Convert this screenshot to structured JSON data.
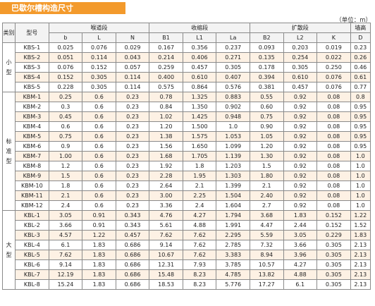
{
  "title": "巴歇尔槽构造尺寸",
  "unit": "（单位：m）",
  "headers": {
    "category": "类别",
    "model": "型号",
    "group_throat": "喉道段",
    "group_contraction": "收缩段",
    "group_expansion": "扩散段",
    "group_wall": "墙高",
    "cols": [
      "b",
      "L",
      "N",
      "B1",
      "L1",
      "La",
      "B2",
      "L2",
      "K",
      "D"
    ]
  },
  "groups": [
    {
      "category": "小型",
      "rows": [
        {
          "model": "KBS-1",
          "values": [
            "0.025",
            "0.076",
            "0.029",
            "0.167",
            "0.356",
            "0.237",
            "0.093",
            "0.203",
            "0.019",
            "0.23"
          ]
        },
        {
          "model": "KBS-2",
          "values": [
            "0.051",
            "0.114",
            "0.043",
            "0.214",
            "0.406",
            "0.271",
            "0.135",
            "0.254",
            "0.022",
            "0.26"
          ]
        },
        {
          "model": "KBS-3",
          "values": [
            "0.076",
            "0.152",
            "0.057",
            "0.259",
            "0.457",
            "0.305",
            "0.178",
            "0.305",
            "0.250",
            "0.46"
          ]
        },
        {
          "model": "KBS-4",
          "values": [
            "0.152",
            "0.305",
            "0.114",
            "0.400",
            "0.610",
            "0.407",
            "0.394",
            "0.610",
            "0.076",
            "0.61"
          ]
        },
        {
          "model": "KBS-5",
          "values": [
            "0.228",
            "0.305",
            "0.114",
            "0.575",
            "0.864",
            "0.576",
            "0.381",
            "0.457",
            "0.076",
            "0.77"
          ]
        }
      ]
    },
    {
      "category": "标准型",
      "rows": [
        {
          "model": "KBM-1",
          "values": [
            "0.25",
            "0.6",
            "0.23",
            "0.78",
            "1.325",
            "0.883",
            "0.55",
            "0.92",
            "0.08",
            "0.8"
          ]
        },
        {
          "model": "KBM-2",
          "values": [
            "0.3",
            "0.6",
            "0.23",
            "0.84",
            "1.350",
            "0.902",
            "0.60",
            "0.92",
            "0.08",
            "0.95"
          ]
        },
        {
          "model": "KBM-3",
          "values": [
            "0.45",
            "0.6",
            "0.23",
            "1.02",
            "1.425",
            "0.948",
            "0.75",
            "0.92",
            "0.08",
            "0.95"
          ]
        },
        {
          "model": "KBM-4",
          "values": [
            "0.6",
            "0.6",
            "0.23",
            "1.20",
            "1.500",
            "1.0",
            "0.90",
            "0.92",
            "0.08",
            "0.95"
          ]
        },
        {
          "model": "KBM-5",
          "values": [
            "0.75",
            "0.6",
            "0.23",
            "1.38",
            "1.575",
            "1.053",
            "1.05",
            "0.92",
            "0.08",
            "0.95"
          ]
        },
        {
          "model": "KBM-6",
          "values": [
            "0.9",
            "0.6",
            "0.23",
            "1.56",
            "1.650",
            "1.099",
            "1.20",
            "0.92",
            "0.08",
            "0.95"
          ]
        },
        {
          "model": "KBM-7",
          "values": [
            "1.00",
            "0.6",
            "0.23",
            "1.68",
            "1.705",
            "1.139",
            "1.30",
            "0.92",
            "0.08",
            "1.0"
          ]
        },
        {
          "model": "KBM-8",
          "values": [
            "1.2",
            "0.6",
            "0.23",
            "1.92",
            "1.8",
            "1.203",
            "1.5",
            "0.92",
            "0.08",
            "1.0"
          ]
        },
        {
          "model": "KBM-9",
          "values": [
            "1.5",
            "0.6",
            "0.23",
            "2.28",
            "1.95",
            "1.303",
            "1.80",
            "0.92",
            "0.08",
            "1.0"
          ]
        },
        {
          "model": "KBM-10",
          "values": [
            "1.8",
            "0.6",
            "0.23",
            "2.64",
            "2.1",
            "1.399",
            "2.1",
            "0.92",
            "0.08",
            "1.0"
          ]
        },
        {
          "model": "KBM-11",
          "values": [
            "2.1",
            "0.6",
            "0.23",
            "3.00",
            "2.25",
            "1.504",
            "2.40",
            "0.92",
            "0.08",
            "1.0"
          ]
        },
        {
          "model": "KBM-12",
          "values": [
            "2.4",
            "0.6",
            "0.23",
            "3.36",
            "2.4",
            "1.604",
            "2.7",
            "0.92",
            "0.08",
            "1.0"
          ]
        }
      ]
    },
    {
      "category": "大型",
      "rows": [
        {
          "model": "KBL-1",
          "values": [
            "3.05",
            "0.91",
            "0.343",
            "4.76",
            "4.27",
            "1.794",
            "3.68",
            "1.83",
            "0.152",
            "1.22"
          ]
        },
        {
          "model": "KBL-2",
          "values": [
            "3.66",
            "0.91",
            "0.343",
            "5.61",
            "4.88",
            "1.991",
            "4.47",
            "2.44",
            "0.152",
            "1.52"
          ]
        },
        {
          "model": "KBL-3",
          "values": [
            "4.57",
            "1.22",
            "0.457",
            "7.62",
            "7.62",
            "2.295",
            "5.59",
            "3.05",
            "0.229",
            "1.83"
          ]
        },
        {
          "model": "KBL-4",
          "values": [
            "6.1",
            "1.83",
            "0.686",
            "9.14",
            "7.62",
            "2.785",
            "7.32",
            "3.66",
            "0.305",
            "2.13"
          ]
        },
        {
          "model": "KBL-5",
          "values": [
            "7.62",
            "1.83",
            "0.686",
            "10.67",
            "7.62",
            "3.383",
            "8.94",
            "3.96",
            "0.305",
            "2.13"
          ]
        },
        {
          "model": "KBL-6",
          "values": [
            "9.14",
            "1.83",
            "0.686",
            "12.31",
            "7.93",
            "3.785",
            "10.57",
            "4.27",
            "0.305",
            "2.13"
          ]
        },
        {
          "model": "KBL-7",
          "values": [
            "12.19",
            "1.83",
            "0.686",
            "15.48",
            "8.23",
            "4.785",
            "13.82",
            "4.88",
            "0.305",
            "2.13"
          ]
        },
        {
          "model": "KBL-8",
          "values": [
            "15.24",
            "1.83",
            "0.686",
            "18.53",
            "8.23",
            "5.776",
            "17.27",
            "6.1",
            "0.305",
            "2.13"
          ]
        }
      ]
    }
  ]
}
